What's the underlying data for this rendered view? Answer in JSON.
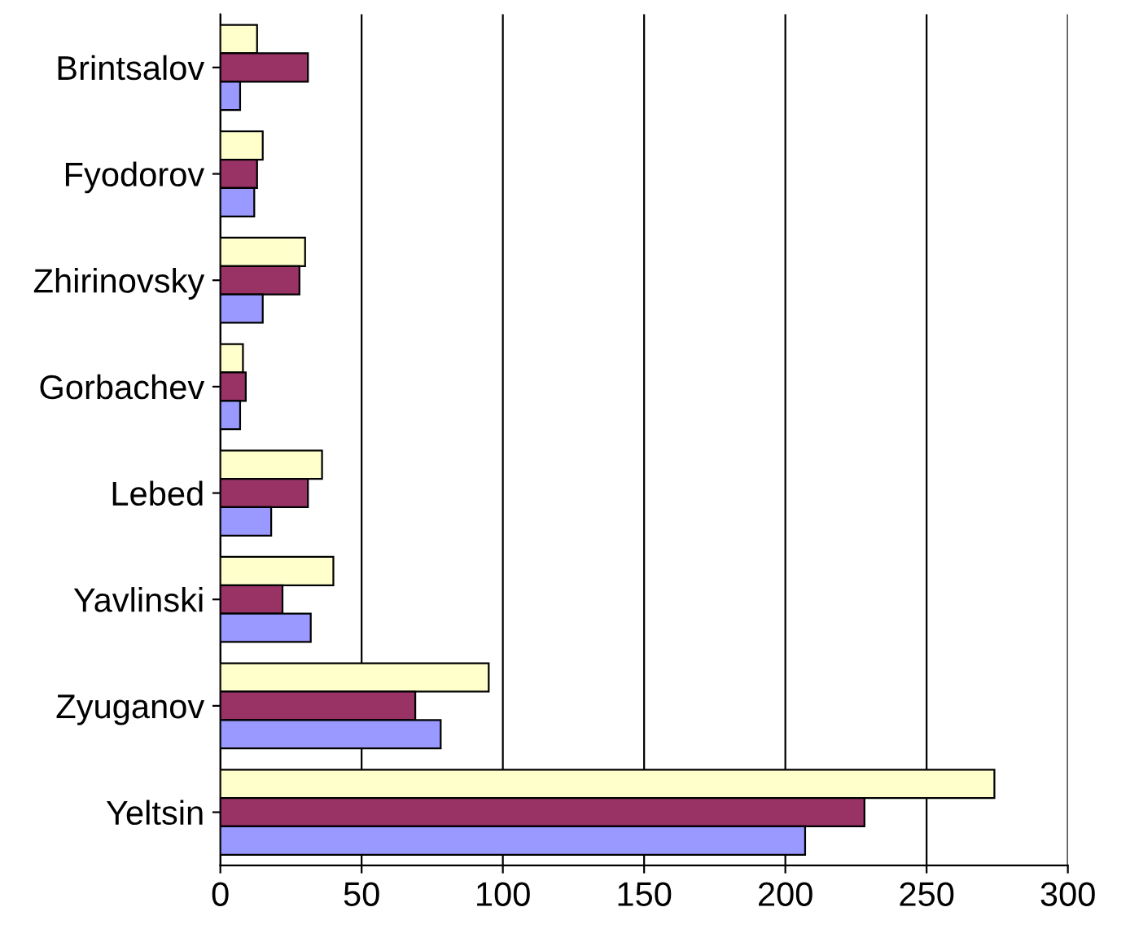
{
  "chart_data": {
    "type": "bar",
    "orientation": "horizontal",
    "categories": [
      "Brintsalov",
      "Fyodorov",
      "Zhirinovsky",
      "Gorbachev",
      "Lebed",
      "Yavlinski",
      "Zyuganov",
      "Yeltsin"
    ],
    "series": [
      {
        "color": "#ffffcc",
        "values": [
          13,
          15,
          30,
          8,
          36,
          40,
          95,
          274
        ]
      },
      {
        "color": "#993366",
        "values": [
          31,
          13,
          28,
          9,
          31,
          22,
          69,
          228
        ]
      },
      {
        "color": "#9999ff",
        "values": [
          7,
          12,
          15,
          7,
          18,
          32,
          78,
          207
        ]
      }
    ],
    "xlim": [
      0,
      300
    ],
    "xticks": [
      0,
      50,
      100,
      150,
      200,
      250,
      300
    ],
    "grid": "x"
  }
}
